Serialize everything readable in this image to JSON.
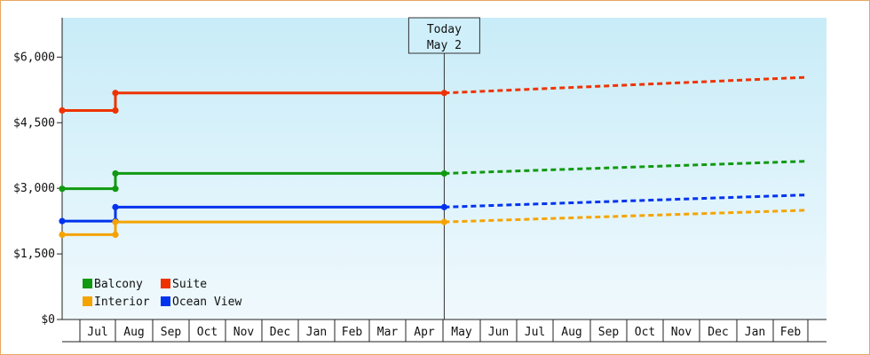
{
  "chart_data": {
    "type": "line",
    "y_ticks": [
      0,
      1500,
      3000,
      4500,
      6000
    ],
    "y_tick_labels": [
      "$0",
      "$1,500",
      "$3,000",
      "$4,500",
      "$6,000"
    ],
    "ylim": [
      0,
      6900
    ],
    "x_ticks": [
      "Jul",
      "Aug",
      "Sep",
      "Oct",
      "Nov",
      "Dec",
      "Jan",
      "Feb",
      "Mar",
      "Apr",
      "May",
      "Jun",
      "Jul",
      "Aug",
      "Sep",
      "Oct",
      "Nov",
      "Dec",
      "Jan",
      "Feb"
    ],
    "today_marker": {
      "line1": "Today",
      "line2": "May 2"
    },
    "grid": false,
    "legend_position": "bottom-left",
    "series": [
      {
        "name": "Suite",
        "color": "#ee3300",
        "points": [
          [
            "Jun 1",
            4780
          ],
          [
            "Aug 1",
            4780
          ],
          [
            "Aug 1",
            5180
          ],
          [
            "May 2",
            5180
          ]
        ],
        "projection": [
          [
            "May 2",
            5180
          ],
          [
            "Mar 1",
            5540
          ]
        ]
      },
      {
        "name": "Balcony",
        "color": "#119911",
        "points": [
          [
            "Jun 1",
            2990
          ],
          [
            "Aug 1",
            2990
          ],
          [
            "Aug 1",
            3340
          ],
          [
            "May 2",
            3340
          ]
        ],
        "projection": [
          [
            "May 2",
            3340
          ],
          [
            "Mar 1",
            3620
          ]
        ]
      },
      {
        "name": "Ocean View",
        "color": "#0033ee",
        "points": [
          [
            "Jun 1",
            2250
          ],
          [
            "Aug 1",
            2250
          ],
          [
            "Aug 1",
            2570
          ],
          [
            "May 2",
            2570
          ]
        ],
        "projection": [
          [
            "May 2",
            2570
          ],
          [
            "Mar 1",
            2850
          ]
        ]
      },
      {
        "name": "Interior",
        "color": "#f5a300",
        "points": [
          [
            "Jun 1",
            1940
          ],
          [
            "Aug 1",
            1940
          ],
          [
            "Aug 1",
            2230
          ],
          [
            "May 2",
            2230
          ]
        ],
        "projection": [
          [
            "May 2",
            2230
          ],
          [
            "Mar 1",
            2500
          ]
        ]
      }
    ],
    "legend": [
      {
        "name": "Balcony",
        "color": "#119911"
      },
      {
        "name": "Suite",
        "color": "#ee3300"
      },
      {
        "name": "Interior",
        "color": "#f5a300"
      },
      {
        "name": "Ocean View",
        "color": "#0033ee"
      }
    ]
  }
}
